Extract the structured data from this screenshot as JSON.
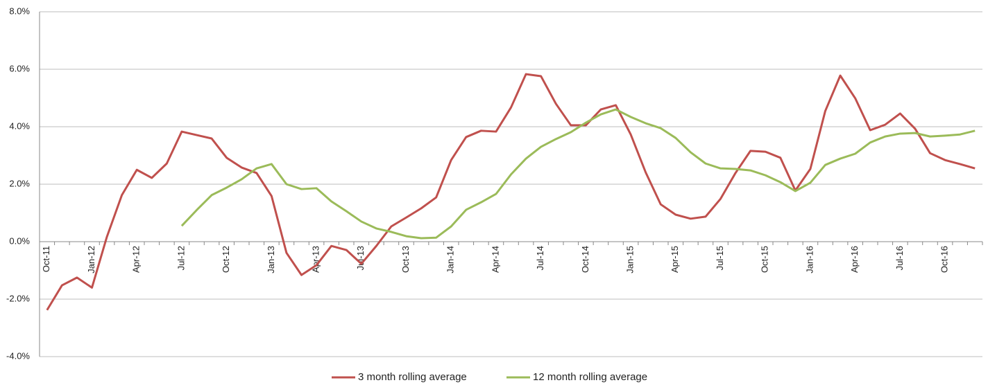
{
  "chart_data": {
    "type": "line",
    "categories": [
      "Oct-11",
      null,
      null,
      "Jan-12",
      null,
      null,
      "Apr-12",
      null,
      null,
      "Jul-12",
      null,
      null,
      "Oct-12",
      null,
      null,
      "Jan-13",
      null,
      null,
      "Apr-13",
      null,
      null,
      "Jul-13",
      null,
      null,
      "Oct-13",
      null,
      null,
      "Jan-14",
      null,
      null,
      "Apr-14",
      null,
      null,
      "Jul-14",
      null,
      null,
      "Oct-14",
      null,
      null,
      "Jan-15",
      null,
      null,
      "Apr-15",
      null,
      null,
      "Jul-15",
      null,
      null,
      "Oct-15",
      null,
      null,
      "Jan-16",
      null,
      null,
      "Apr-16",
      null,
      null,
      "Jul-16",
      null,
      null,
      "Oct-16",
      null,
      null
    ],
    "series": [
      {
        "name": "3 month rolling average",
        "color": "#c0504d",
        "values": [
          -2.38,
          -1.52,
          -1.25,
          -1.6,
          0.17,
          1.62,
          2.5,
          2.22,
          2.72,
          3.83,
          3.71,
          3.59,
          2.92,
          2.58,
          2.39,
          1.59,
          -0.39,
          -1.16,
          -0.82,
          -0.15,
          -0.29,
          -0.77,
          -0.15,
          0.53,
          0.84,
          1.16,
          1.54,
          2.84,
          3.64,
          3.86,
          3.83,
          4.67,
          5.83,
          5.76,
          4.8,
          4.05,
          4.05,
          4.6,
          4.75,
          3.73,
          2.41,
          1.3,
          0.94,
          0.8,
          0.87,
          1.49,
          2.39,
          3.16,
          3.13,
          2.92,
          1.78,
          2.53,
          4.55,
          5.78,
          4.99,
          3.88,
          4.07,
          4.46,
          3.93,
          3.08,
          2.84,
          2.7,
          2.55
        ]
      },
      {
        "name": "12 month rolling average",
        "color": "#9bbb59",
        "values": [
          null,
          null,
          null,
          null,
          null,
          null,
          null,
          null,
          null,
          0.55,
          1.1,
          1.62,
          1.88,
          2.17,
          2.55,
          2.7,
          2.0,
          1.83,
          1.86,
          1.4,
          1.06,
          0.7,
          0.46,
          0.34,
          0.19,
          0.12,
          0.14,
          0.53,
          1.11,
          1.37,
          1.66,
          2.34,
          2.89,
          3.3,
          3.57,
          3.81,
          4.14,
          4.43,
          4.6,
          4.34,
          4.12,
          3.95,
          3.61,
          3.11,
          2.72,
          2.55,
          2.53,
          2.48,
          2.31,
          2.07,
          1.76,
          2.05,
          2.67,
          2.89,
          3.06,
          3.45,
          3.66,
          3.76,
          3.78,
          3.66,
          3.69,
          3.73,
          3.86
        ]
      }
    ],
    "ylim": [
      -4,
      8
    ],
    "yticks": [
      {
        "value": -4,
        "label": "-4.0%"
      },
      {
        "value": -2,
        "label": "-2.0%"
      },
      {
        "value": 0,
        "label": "0.0%"
      },
      {
        "value": 2,
        "label": "2.0%"
      },
      {
        "value": 4,
        "label": "4.0%"
      },
      {
        "value": 6,
        "label": "6.0%"
      },
      {
        "value": 8,
        "label": "8.0%"
      }
    ],
    "grid": true,
    "legend": "bottom"
  }
}
